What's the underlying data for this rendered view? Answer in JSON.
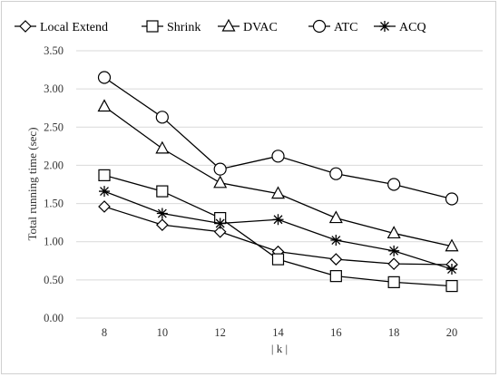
{
  "chart_data": {
    "type": "line",
    "title": "",
    "xlabel": "| k |",
    "ylabel": "Total running time (sec)",
    "x": [
      8,
      10,
      12,
      14,
      16,
      18,
      20
    ],
    "x_tick_labels": [
      "8",
      "10",
      "12",
      "14",
      "16",
      "18",
      "20"
    ],
    "ylim": [
      0,
      3.5
    ],
    "y_ticks": [
      0,
      0.5,
      1.0,
      1.5,
      2.0,
      2.5,
      3.0,
      3.5
    ],
    "y_tick_labels": [
      "0.00",
      "0.50",
      "1.00",
      "1.50",
      "2.00",
      "2.50",
      "3.00",
      "3.50"
    ],
    "grid": "horizontal",
    "legend_position": "top",
    "series": [
      {
        "name": "Local Extend",
        "marker": "diamond",
        "values": [
          1.46,
          1.22,
          1.13,
          0.87,
          0.77,
          0.71,
          0.7
        ]
      },
      {
        "name": "Shrink",
        "marker": "square",
        "values": [
          1.87,
          1.66,
          1.31,
          0.77,
          0.55,
          0.47,
          0.42
        ]
      },
      {
        "name": "DVAC",
        "marker": "triangle",
        "values": [
          2.77,
          2.22,
          1.77,
          1.63,
          1.31,
          1.11,
          0.94
        ]
      },
      {
        "name": "ATC",
        "marker": "circle",
        "values": [
          3.15,
          2.63,
          1.95,
          2.12,
          1.89,
          1.75,
          1.56
        ]
      },
      {
        "name": "ACQ",
        "marker": "star",
        "values": [
          1.66,
          1.37,
          1.24,
          1.29,
          1.02,
          0.88,
          0.64
        ]
      }
    ]
  }
}
